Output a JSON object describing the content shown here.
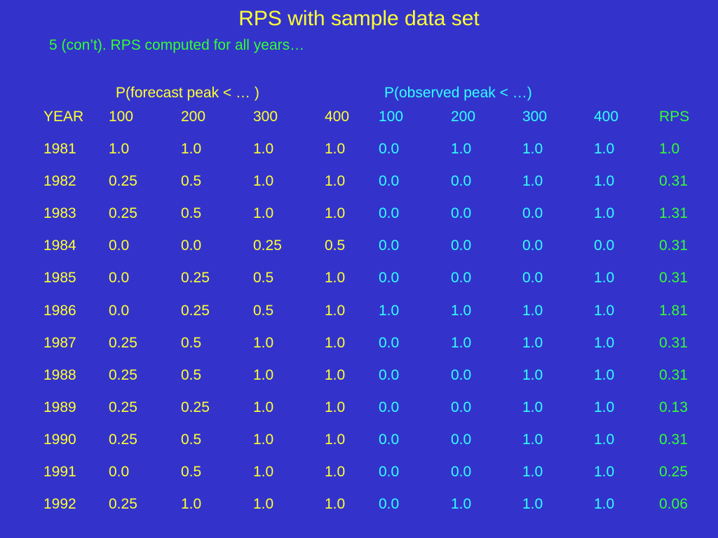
{
  "title": "RPS with sample data set",
  "subtitle": "5 (con’t). RPS computed for all years…",
  "groups": {
    "forecast": "P(forecast peak < … )",
    "observed": "P(observed peak < …)"
  },
  "headers": [
    "YEAR",
    "100",
    "200",
    "300",
    "400",
    "100",
    "200",
    "300",
    "400",
    "RPS"
  ],
  "rows": [
    [
      "1981",
      "1.0",
      "1.0",
      "1.0",
      "1.0",
      "0.0",
      "1.0",
      "1.0",
      "1.0",
      "1.0"
    ],
    [
      "1982",
      "0.25",
      "0.5",
      "1.0",
      "1.0",
      "0.0",
      "0.0",
      "1.0",
      "1.0",
      "0.31"
    ],
    [
      "1983",
      "0.25",
      "0.5",
      "1.0",
      "1.0",
      "0.0",
      "0.0",
      "0.0",
      "1.0",
      "1.31"
    ],
    [
      "1984",
      "0.0",
      "0.0",
      "0.25",
      "0.5",
      "0.0",
      "0.0",
      "0.0",
      "0.0",
      "0.31"
    ],
    [
      "1985",
      "0.0",
      "0.25",
      "0.5",
      "1.0",
      "0.0",
      "0.0",
      "0.0",
      "1.0",
      "0.31"
    ],
    [
      "1986",
      "0.0",
      "0.25",
      "0.5",
      "1.0",
      "1.0",
      "1.0",
      "1.0",
      "1.0",
      "1.81"
    ],
    [
      "1987",
      "0.25",
      "0.5",
      "1.0",
      "1.0",
      "0.0",
      "1.0",
      "1.0",
      "1.0",
      "0.31"
    ],
    [
      "1988",
      "0.25",
      "0.5",
      "1.0",
      "1.0",
      "0.0",
      "0.0",
      "1.0",
      "1.0",
      "0.31"
    ],
    [
      "1989",
      "0.25",
      "0.25",
      "1.0",
      "1.0",
      "0.0",
      "0.0",
      "1.0",
      "1.0",
      "0.13"
    ],
    [
      "1990",
      "0.25",
      "0.5",
      "1.0",
      "1.0",
      "0.0",
      "0.0",
      "1.0",
      "1.0",
      "0.31"
    ],
    [
      "1991",
      "0.0",
      "0.5",
      "1.0",
      "1.0",
      "0.0",
      "0.0",
      "1.0",
      "1.0",
      "0.25"
    ],
    [
      "1992",
      "0.25",
      "1.0",
      "1.0",
      "1.0",
      "0.0",
      "1.0",
      "1.0",
      "1.0",
      "0.06"
    ]
  ],
  "colors": {
    "background": "#3333cc",
    "forecast": "#ffff33",
    "observed": "#33ffff",
    "rps": "#33ff33",
    "subtitle": "#33ff33"
  }
}
